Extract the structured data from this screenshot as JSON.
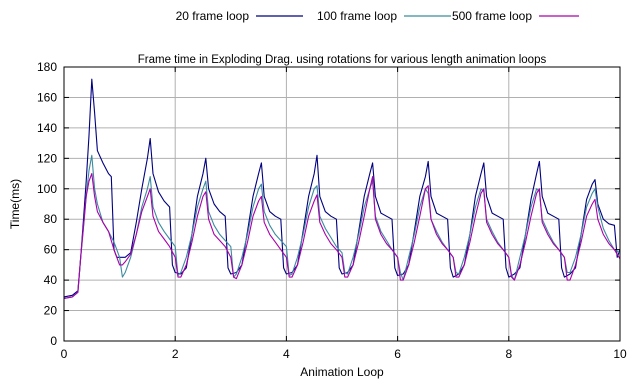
{
  "chart_data": {
    "type": "line",
    "title": "Frame time in Exploding Drag. using rotations for various length animation loops",
    "xlabel": "Animation Loop",
    "ylabel": "Time(ms)",
    "xlim": [
      0,
      10
    ],
    "ylim": [
      0,
      180
    ],
    "xticks": [
      "0",
      "2",
      "4",
      "6",
      "8",
      "10"
    ],
    "yticks": [
      "0",
      "20",
      "40",
      "60",
      "80",
      "100",
      "120",
      "140",
      "160",
      "180"
    ],
    "grid": true,
    "legend_position": "top (outside plot area)",
    "series": [
      {
        "name": "20 frame loop",
        "color": "#000080",
        "x": [
          0,
          0.15,
          0.25,
          0.3,
          0.35,
          0.4,
          0.45,
          0.5,
          0.55,
          0.6,
          0.7,
          0.8,
          0.85,
          0.9,
          0.95,
          1.0,
          1.1,
          1.2,
          1.3,
          1.4,
          1.5,
          1.55,
          1.6,
          1.7,
          1.8,
          1.9,
          1.95,
          2.0,
          2.1,
          2.2,
          2.3,
          2.4,
          2.5,
          2.55,
          2.6,
          2.7,
          2.8,
          2.9,
          2.95,
          3.0,
          3.1,
          3.2,
          3.3,
          3.4,
          3.5,
          3.55,
          3.6,
          3.7,
          3.8,
          3.9,
          3.95,
          4.0,
          4.1,
          4.2,
          4.3,
          4.4,
          4.5,
          4.55,
          4.6,
          4.7,
          4.8,
          4.9,
          4.95,
          5.0,
          5.1,
          5.2,
          5.3,
          5.4,
          5.5,
          5.55,
          5.6,
          5.7,
          5.8,
          5.9,
          5.95,
          6.0,
          6.1,
          6.2,
          6.3,
          6.4,
          6.5,
          6.55,
          6.6,
          6.7,
          6.8,
          6.9,
          6.95,
          7.0,
          7.1,
          7.2,
          7.3,
          7.4,
          7.5,
          7.55,
          7.6,
          7.7,
          7.8,
          7.9,
          7.95,
          8.0,
          8.1,
          8.2,
          8.3,
          8.4,
          8.5,
          8.55,
          8.6,
          8.7,
          8.8,
          8.9,
          8.95,
          9.0,
          9.1,
          9.2,
          9.3,
          9.4,
          9.5,
          9.55,
          9.6,
          9.7,
          9.8,
          9.9,
          9.95,
          10.0
        ],
        "y": [
          29,
          30,
          33,
          55,
          80,
          105,
          135,
          172,
          150,
          125,
          117,
          110,
          108,
          60,
          55,
          55,
          55,
          58,
          78,
          100,
          120,
          133,
          110,
          98,
          92,
          88,
          50,
          45,
          44,
          48,
          70,
          95,
          110,
          120,
          100,
          90,
          85,
          82,
          48,
          44,
          45,
          50,
          72,
          95,
          110,
          117,
          95,
          85,
          82,
          80,
          48,
          44,
          45,
          50,
          72,
          95,
          110,
          122,
          95,
          85,
          82,
          80,
          48,
          44,
          45,
          50,
          72,
          95,
          110,
          117,
          95,
          84,
          82,
          80,
          48,
          43,
          44,
          50,
          72,
          95,
          108,
          118,
          95,
          84,
          82,
          80,
          48,
          42,
          44,
          50,
          70,
          95,
          110,
          117,
          95,
          84,
          82,
          80,
          48,
          42,
          44,
          48,
          70,
          93,
          110,
          118,
          95,
          84,
          82,
          80,
          48,
          42,
          44,
          48,
          70,
          93,
          103,
          106,
          90,
          80,
          77,
          76,
          55,
          60
        ]
      },
      {
        "name": "100 frame loop",
        "color": "#3c8aa0",
        "x": [
          0,
          0.15,
          0.25,
          0.3,
          0.35,
          0.4,
          0.45,
          0.5,
          0.55,
          0.6,
          0.7,
          0.8,
          0.9,
          1.0,
          1.05,
          1.1,
          1.2,
          1.3,
          1.4,
          1.5,
          1.55,
          1.6,
          1.7,
          1.8,
          1.9,
          2.0,
          2.05,
          2.1,
          2.2,
          2.3,
          2.4,
          2.5,
          2.55,
          2.6,
          2.7,
          2.8,
          2.9,
          3.0,
          3.05,
          3.1,
          3.2,
          3.3,
          3.4,
          3.5,
          3.55,
          3.6,
          3.7,
          3.8,
          3.9,
          4.0,
          4.05,
          4.1,
          4.2,
          4.3,
          4.4,
          4.5,
          4.55,
          4.6,
          4.7,
          4.8,
          4.9,
          5.0,
          5.05,
          5.1,
          5.2,
          5.3,
          5.4,
          5.5,
          5.55,
          5.6,
          5.7,
          5.8,
          5.9,
          6.0,
          6.05,
          6.1,
          6.2,
          6.3,
          6.4,
          6.5,
          6.55,
          6.6,
          6.7,
          6.8,
          6.9,
          7.0,
          7.05,
          7.1,
          7.2,
          7.3,
          7.4,
          7.5,
          7.55,
          7.6,
          7.7,
          7.8,
          7.9,
          8.0,
          8.05,
          8.1,
          8.2,
          8.3,
          8.4,
          8.5,
          8.55,
          8.6,
          8.7,
          8.8,
          8.9,
          9.0,
          9.05,
          9.1,
          9.2,
          9.3,
          9.4,
          9.5,
          9.55,
          9.6,
          9.7,
          9.8,
          9.9,
          10.0
        ],
        "y": [
          28,
          29,
          32,
          55,
          75,
          95,
          112,
          122,
          100,
          90,
          78,
          72,
          65,
          55,
          42,
          45,
          55,
          70,
          88,
          100,
          108,
          88,
          78,
          72,
          67,
          62,
          43,
          45,
          55,
          70,
          88,
          100,
          105,
          85,
          76,
          70,
          66,
          62,
          42,
          44,
          55,
          70,
          88,
          100,
          103,
          85,
          76,
          70,
          66,
          62,
          43,
          44,
          55,
          70,
          88,
          100,
          102,
          82,
          74,
          68,
          62,
          58,
          45,
          44,
          55,
          70,
          88,
          100,
          105,
          82,
          72,
          66,
          60,
          55,
          45,
          40,
          55,
          70,
          88,
          100,
          97,
          80,
          72,
          65,
          60,
          55,
          45,
          44,
          55,
          70,
          88,
          100,
          98,
          80,
          72,
          65,
          60,
          55,
          43,
          40,
          55,
          70,
          88,
          100,
          98,
          80,
          72,
          65,
          60,
          55,
          45,
          45,
          55,
          70,
          88,
          97,
          100,
          88,
          74,
          66,
          60,
          58
        ]
      },
      {
        "name": "500 frame loop",
        "color": "#aa00aa",
        "x": [
          0,
          0.15,
          0.25,
          0.3,
          0.35,
          0.4,
          0.45,
          0.5,
          0.55,
          0.6,
          0.7,
          0.8,
          0.9,
          1.0,
          1.05,
          1.1,
          1.2,
          1.3,
          1.4,
          1.5,
          1.55,
          1.6,
          1.7,
          1.8,
          1.9,
          2.0,
          2.05,
          2.1,
          2.2,
          2.3,
          2.4,
          2.5,
          2.55,
          2.6,
          2.7,
          2.8,
          2.9,
          3.0,
          3.05,
          3.1,
          3.2,
          3.3,
          3.4,
          3.5,
          3.55,
          3.6,
          3.7,
          3.8,
          3.9,
          4.0,
          4.05,
          4.1,
          4.2,
          4.3,
          4.4,
          4.5,
          4.55,
          4.6,
          4.7,
          4.8,
          4.9,
          5.0,
          5.05,
          5.1,
          5.2,
          5.3,
          5.4,
          5.5,
          5.55,
          5.6,
          5.7,
          5.8,
          5.9,
          6.0,
          6.05,
          6.1,
          6.2,
          6.3,
          6.4,
          6.5,
          6.55,
          6.6,
          6.7,
          6.8,
          6.9,
          7.0,
          7.05,
          7.1,
          7.2,
          7.3,
          7.4,
          7.5,
          7.55,
          7.6,
          7.7,
          7.8,
          7.9,
          8.0,
          8.05,
          8.1,
          8.2,
          8.3,
          8.4,
          8.5,
          8.55,
          8.6,
          8.7,
          8.8,
          8.9,
          9.0,
          9.05,
          9.1,
          9.2,
          9.3,
          9.4,
          9.5,
          9.55,
          9.6,
          9.7,
          9.8,
          9.9,
          10.0
        ],
        "y": [
          28,
          29,
          32,
          55,
          75,
          95,
          105,
          110,
          95,
          85,
          78,
          72,
          60,
          50,
          50,
          52,
          57,
          70,
          85,
          95,
          100,
          82,
          72,
          67,
          62,
          55,
          42,
          42,
          50,
          65,
          82,
          95,
          98,
          80,
          70,
          66,
          62,
          55,
          42,
          41,
          50,
          65,
          82,
          92,
          95,
          78,
          70,
          65,
          60,
          55,
          42,
          42,
          50,
          65,
          82,
          92,
          96,
          78,
          70,
          64,
          60,
          55,
          42,
          42,
          50,
          65,
          82,
          100,
          108,
          80,
          70,
          64,
          60,
          55,
          40,
          40,
          50,
          65,
          82,
          100,
          102,
          80,
          70,
          64,
          60,
          55,
          42,
          42,
          50,
          65,
          82,
          97,
          100,
          78,
          70,
          64,
          60,
          55,
          42,
          40,
          50,
          65,
          82,
          97,
          100,
          78,
          70,
          64,
          60,
          55,
          40,
          40,
          50,
          65,
          82,
          90,
          93,
          80,
          70,
          64,
          60,
          54
        ]
      }
    ]
  }
}
